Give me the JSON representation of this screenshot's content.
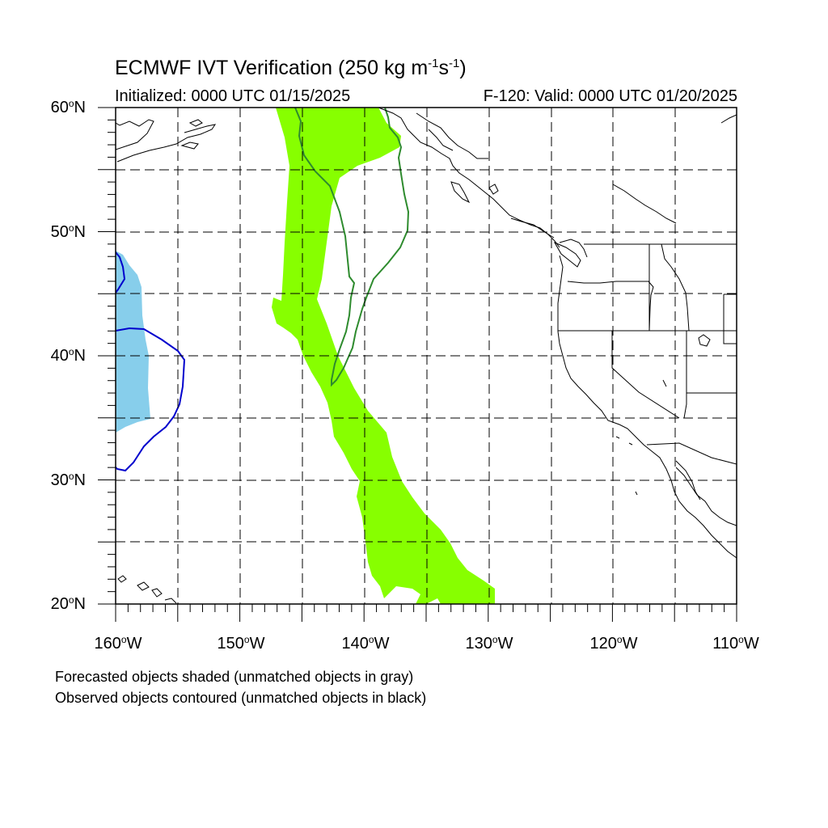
{
  "title": {
    "prefix": "ECMWF IVT Verification (250 kg m",
    "exp1": "-1",
    "mid": "s",
    "exp2": "-1",
    "suffix": ")"
  },
  "subtitle_left": "Initialized: 0000 UTC 01/15/2025",
  "subtitle_right": "F-120: Valid: 0000 UTC 01/20/2025",
  "lat_labels": [
    "60",
    "50",
    "40",
    "30",
    "20"
  ],
  "lat_suffix": "N",
  "lon_labels": [
    "160",
    "150",
    "140",
    "130",
    "120",
    "110"
  ],
  "lon_suffix": "W",
  "degree_symbol": "o",
  "footnotes": [
    "Forecasted objects shaded (unmatched objects in gray)",
    "Observed objects contoured (unmatched objects in black)"
  ],
  "map_extent": {
    "lon_min": -160,
    "lon_max": -110,
    "lat_min": 20,
    "lat_max": 60
  },
  "colors": {
    "forecast_matched_1": "#87ff00",
    "forecast_matched_2": "#87ceeb",
    "observed_matched_1": "#2e8b2e",
    "observed_matched_2": "#0000cd",
    "coastline": "#000000"
  }
}
